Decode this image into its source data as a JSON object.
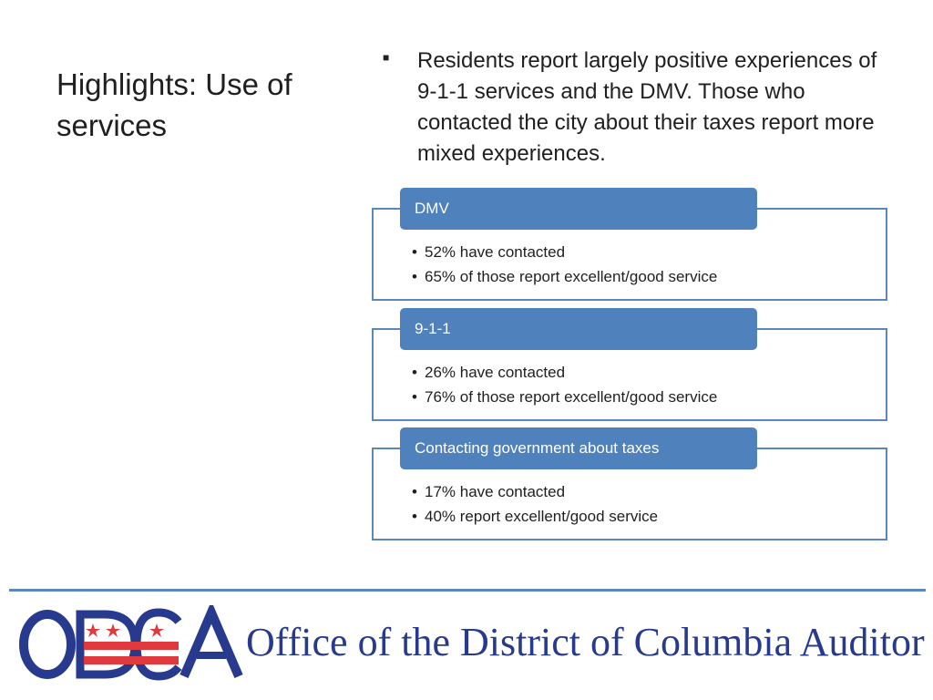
{
  "slide": {
    "title": "Highlights: Use of services",
    "intro": "Residents report largely positive experiences of 9-1-1 services and the DMV. Those who contacted the city about their taxes report more mixed experiences."
  },
  "cards": [
    {
      "header": "DMV",
      "items": [
        "52% have contacted",
        "65% of those report excellent/good service"
      ]
    },
    {
      "header": "9-1-1",
      "items": [
        "26% have contacted",
        "76% of those report excellent/good service"
      ]
    },
    {
      "header": "Contacting government about taxes",
      "items": [
        "17% have contacted",
        "40% report excellent/good service"
      ]
    }
  ],
  "footer": {
    "logo_text": "ODCA",
    "org_name": "Office of the District of Columbia Auditor"
  },
  "colors": {
    "accent": "#4f81bd",
    "border": "#5b86c0",
    "logo_blue": "#283a8e",
    "logo_red": "#e03a3e"
  }
}
